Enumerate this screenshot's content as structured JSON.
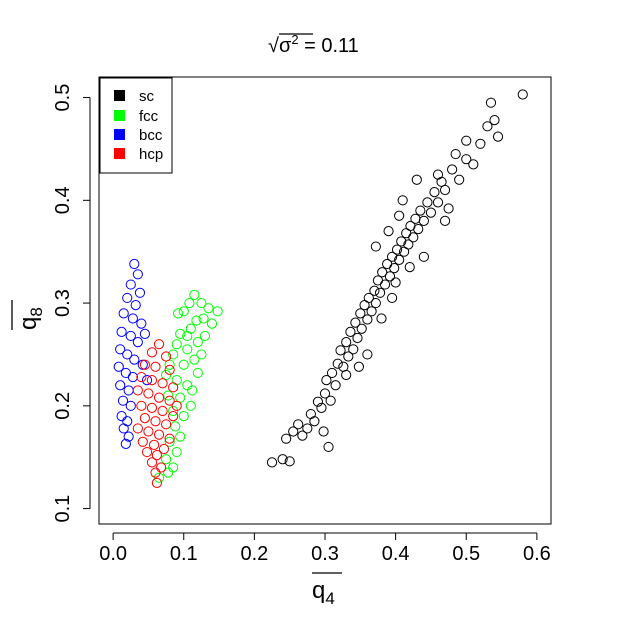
{
  "chart_data": {
    "type": "scatter",
    "title": {
      "radical": "√",
      "base": "σ",
      "exponent": "2",
      "suffix": " = 0.11"
    },
    "xlabel": {
      "base": "q",
      "subscript": "4"
    },
    "ylabel": {
      "base": "q",
      "subscript": "8"
    },
    "xlim": [
      -0.02,
      0.62
    ],
    "ylim": [
      0.085,
      0.52
    ],
    "x_ticks": [
      "0.0",
      "0.1",
      "0.2",
      "0.3",
      "0.4",
      "0.5",
      "0.6"
    ],
    "y_ticks": [
      "0.1",
      "0.2",
      "0.3",
      "0.4",
      "0.5"
    ],
    "grid": false,
    "legend_position": "top-left",
    "series": [
      {
        "name": "sc",
        "color": "#000000",
        "points": [
          [
            0.225,
            0.145
          ],
          [
            0.24,
            0.148
          ],
          [
            0.25,
            0.146
          ],
          [
            0.245,
            0.168
          ],
          [
            0.255,
            0.175
          ],
          [
            0.262,
            0.182
          ],
          [
            0.268,
            0.171
          ],
          [
            0.275,
            0.178
          ],
          [
            0.28,
            0.192
          ],
          [
            0.285,
            0.185
          ],
          [
            0.29,
            0.204
          ],
          [
            0.295,
            0.198
          ],
          [
            0.3,
            0.212
          ],
          [
            0.302,
            0.225
          ],
          [
            0.308,
            0.205
          ],
          [
            0.31,
            0.232
          ],
          [
            0.315,
            0.22
          ],
          [
            0.318,
            0.241
          ],
          [
            0.322,
            0.254
          ],
          [
            0.326,
            0.238
          ],
          [
            0.33,
            0.262
          ],
          [
            0.333,
            0.248
          ],
          [
            0.336,
            0.272
          ],
          [
            0.34,
            0.255
          ],
          [
            0.343,
            0.281
          ],
          [
            0.346,
            0.266
          ],
          [
            0.35,
            0.29
          ],
          [
            0.352,
            0.275
          ],
          [
            0.356,
            0.298
          ],
          [
            0.36,
            0.284
          ],
          [
            0.362,
            0.305
          ],
          [
            0.366,
            0.292
          ],
          [
            0.37,
            0.312
          ],
          [
            0.372,
            0.3
          ],
          [
            0.375,
            0.322
          ],
          [
            0.378,
            0.31
          ],
          [
            0.381,
            0.33
          ],
          [
            0.385,
            0.318
          ],
          [
            0.388,
            0.338
          ],
          [
            0.392,
            0.326
          ],
          [
            0.395,
            0.345
          ],
          [
            0.398,
            0.334
          ],
          [
            0.402,
            0.352
          ],
          [
            0.405,
            0.342
          ],
          [
            0.408,
            0.36
          ],
          [
            0.412,
            0.35
          ],
          [
            0.415,
            0.368
          ],
          [
            0.418,
            0.357
          ],
          [
            0.421,
            0.375
          ],
          [
            0.425,
            0.364
          ],
          [
            0.428,
            0.382
          ],
          [
            0.432,
            0.372
          ],
          [
            0.435,
            0.39
          ],
          [
            0.44,
            0.38
          ],
          [
            0.445,
            0.398
          ],
          [
            0.45,
            0.388
          ],
          [
            0.455,
            0.408
          ],
          [
            0.46,
            0.398
          ],
          [
            0.465,
            0.418
          ],
          [
            0.47,
            0.41
          ],
          [
            0.48,
            0.43
          ],
          [
            0.49,
            0.42
          ],
          [
            0.5,
            0.44
          ],
          [
            0.51,
            0.435
          ],
          [
            0.52,
            0.455
          ],
          [
            0.53,
            0.472
          ],
          [
            0.54,
            0.478
          ],
          [
            0.535,
            0.495
          ],
          [
            0.545,
            0.462
          ],
          [
            0.58,
            0.503
          ],
          [
            0.305,
            0.16
          ],
          [
            0.298,
            0.175
          ],
          [
            0.33,
            0.23
          ],
          [
            0.348,
            0.238
          ],
          [
            0.36,
            0.25
          ],
          [
            0.38,
            0.285
          ],
          [
            0.395,
            0.305
          ],
          [
            0.4,
            0.32
          ],
          [
            0.42,
            0.335
          ],
          [
            0.44,
            0.345
          ],
          [
            0.372,
            0.355
          ],
          [
            0.39,
            0.37
          ],
          [
            0.405,
            0.385
          ],
          [
            0.41,
            0.4
          ],
          [
            0.43,
            0.42
          ],
          [
            0.46,
            0.425
          ],
          [
            0.475,
            0.392
          ],
          [
            0.485,
            0.445
          ],
          [
            0.5,
            0.458
          ],
          [
            0.47,
            0.38
          ]
        ]
      },
      {
        "name": "fcc",
        "color": "#00ff00",
        "points": [
          [
            0.1,
            0.292
          ],
          [
            0.115,
            0.308
          ],
          [
            0.125,
            0.3
          ],
          [
            0.135,
            0.295
          ],
          [
            0.148,
            0.292
          ],
          [
            0.14,
            0.28
          ],
          [
            0.128,
            0.285
          ],
          [
            0.11,
            0.275
          ],
          [
            0.095,
            0.27
          ],
          [
            0.09,
            0.26
          ],
          [
            0.105,
            0.255
          ],
          [
            0.12,
            0.262
          ],
          [
            0.085,
            0.25
          ],
          [
            0.08,
            0.24
          ],
          [
            0.1,
            0.24
          ],
          [
            0.115,
            0.245
          ],
          [
            0.075,
            0.23
          ],
          [
            0.09,
            0.225
          ],
          [
            0.105,
            0.22
          ],
          [
            0.078,
            0.21
          ],
          [
            0.095,
            0.208
          ],
          [
            0.11,
            0.2
          ],
          [
            0.085,
            0.195
          ],
          [
            0.1,
            0.19
          ],
          [
            0.088,
            0.18
          ],
          [
            0.095,
            0.17
          ],
          [
            0.08,
            0.165
          ],
          [
            0.09,
            0.155
          ],
          [
            0.075,
            0.148
          ],
          [
            0.085,
            0.14
          ],
          [
            0.065,
            0.13
          ],
          [
            0.078,
            0.135
          ],
          [
            0.12,
            0.232
          ],
          [
            0.125,
            0.25
          ],
          [
            0.13,
            0.268
          ],
          [
            0.118,
            0.283
          ],
          [
            0.108,
            0.3
          ],
          [
            0.092,
            0.29
          ],
          [
            0.105,
            0.268
          ],
          [
            0.112,
            0.215
          ]
        ]
      },
      {
        "name": "bcc",
        "color": "#0000ff",
        "points": [
          [
            0.03,
            0.338
          ],
          [
            0.035,
            0.328
          ],
          [
            0.025,
            0.318
          ],
          [
            0.038,
            0.31
          ],
          [
            0.02,
            0.305
          ],
          [
            0.032,
            0.298
          ],
          [
            0.015,
            0.29
          ],
          [
            0.028,
            0.285
          ],
          [
            0.04,
            0.28
          ],
          [
            0.012,
            0.272
          ],
          [
            0.025,
            0.268
          ],
          [
            0.035,
            0.262
          ],
          [
            0.01,
            0.255
          ],
          [
            0.02,
            0.25
          ],
          [
            0.03,
            0.245
          ],
          [
            0.008,
            0.238
          ],
          [
            0.018,
            0.232
          ],
          [
            0.028,
            0.228
          ],
          [
            0.01,
            0.22
          ],
          [
            0.022,
            0.215
          ],
          [
            0.014,
            0.205
          ],
          [
            0.025,
            0.2
          ],
          [
            0.012,
            0.19
          ],
          [
            0.02,
            0.185
          ],
          [
            0.015,
            0.178
          ],
          [
            0.022,
            0.17
          ],
          [
            0.018,
            0.163
          ],
          [
            0.045,
            0.27
          ],
          [
            0.042,
            0.24
          ],
          [
            0.048,
            0.225
          ]
        ]
      },
      {
        "name": "hcp",
        "color": "#ff0000",
        "points": [
          [
            0.065,
            0.26
          ],
          [
            0.055,
            0.252
          ],
          [
            0.075,
            0.248
          ],
          [
            0.045,
            0.24
          ],
          [
            0.06,
            0.238
          ],
          [
            0.08,
            0.235
          ],
          [
            0.04,
            0.228
          ],
          [
            0.055,
            0.225
          ],
          [
            0.07,
            0.222
          ],
          [
            0.085,
            0.218
          ],
          [
            0.035,
            0.215
          ],
          [
            0.05,
            0.212
          ],
          [
            0.065,
            0.208
          ],
          [
            0.08,
            0.205
          ],
          [
            0.04,
            0.2
          ],
          [
            0.055,
            0.198
          ],
          [
            0.07,
            0.195
          ],
          [
            0.085,
            0.19
          ],
          [
            0.045,
            0.188
          ],
          [
            0.06,
            0.185
          ],
          [
            0.075,
            0.182
          ],
          [
            0.035,
            0.178
          ],
          [
            0.05,
            0.175
          ],
          [
            0.065,
            0.172
          ],
          [
            0.08,
            0.168
          ],
          [
            0.042,
            0.165
          ],
          [
            0.058,
            0.162
          ],
          [
            0.072,
            0.158
          ],
          [
            0.048,
            0.155
          ],
          [
            0.062,
            0.152
          ],
          [
            0.055,
            0.145
          ],
          [
            0.068,
            0.14
          ],
          [
            0.06,
            0.135
          ],
          [
            0.062,
            0.125
          ],
          [
            0.09,
            0.2
          ]
        ]
      }
    ]
  }
}
